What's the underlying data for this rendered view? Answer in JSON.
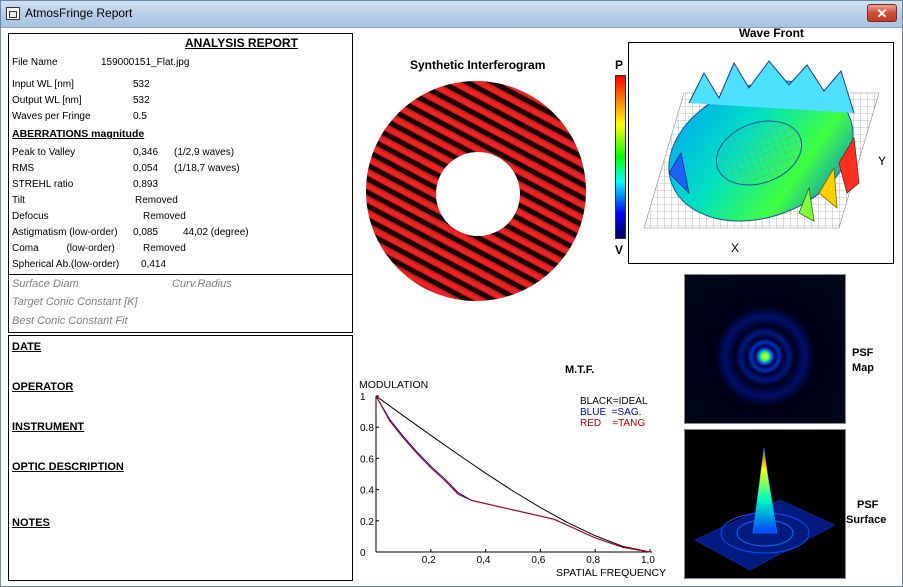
{
  "window": {
    "title": "AtmosFringe  Report",
    "close_label": "✕"
  },
  "report": {
    "title": "ANALYSIS  REPORT",
    "fields": [
      {
        "label": "File Name",
        "value": "159000151_Flat.jpg"
      },
      {
        "label": "Input  WL [nm]",
        "value": "532"
      },
      {
        "label": "Output WL [nm]",
        "value": "532"
      },
      {
        "label": "Waves per Fringe",
        "value": "0.5"
      }
    ],
    "aberrations_header": "ABERRATIONS magnitude",
    "aberrations": [
      {
        "label": "Peak to Valley",
        "value": "0,346",
        "extra": "(1/2,9 waves)"
      },
      {
        "label": "RMS",
        "value": "0,054",
        "extra": "(1/18,7 waves)"
      },
      {
        "label": "STREHL ratio",
        "value": "0,893",
        "extra": ""
      },
      {
        "label": "Tilt",
        "value": "Removed",
        "extra": ""
      },
      {
        "label": "Defocus",
        "value": "Removed",
        "extra": ""
      },
      {
        "label": "Astigmatism  (low-order)",
        "value": "0,085",
        "extra": "44,02  (degree)"
      },
      {
        "label": "Coma          (low-order)",
        "value": "Removed",
        "extra": ""
      },
      {
        "label": "Spherical Ab.(low-order)",
        "value": "0,414",
        "extra": ""
      }
    ],
    "surface_diam": "Surface Diam",
    "curv_radius": "Curv.Radius",
    "target_conic": "Target Conic Constant [K]",
    "best_conic": "Best Conic Constant Fit"
  },
  "notes_panel": {
    "date": "DATE",
    "operator": "OPERATOR",
    "instrument": "INSTRUMENT",
    "optic_description": "OPTIC DESCRIPTION",
    "notes": "NOTES"
  },
  "interferogram": {
    "title": "Synthetic Interferogram"
  },
  "colorbar": {
    "top": "P",
    "bottom": "V"
  },
  "wavefront": {
    "title": "Wave Front",
    "x_label": "X",
    "y_label": "Y"
  },
  "psf": {
    "map_label_1": "PSF",
    "map_label_2": "Map",
    "surface_label_1": "PSF",
    "surface_label_2": "Surface"
  },
  "colors": {
    "fringe": "#d01818",
    "ideal": "#000000",
    "sag": "#0000c0",
    "tang": "#c00000"
  },
  "chart_data": {
    "type": "line",
    "title": "M.T.F.",
    "ylabel": "MODULATION",
    "xlabel": "SPATIAL FREQUENCY",
    "xlim": [
      0,
      1
    ],
    "ylim": [
      0,
      1
    ],
    "xticks": [
      "0,2",
      "0,4",
      "0,6",
      "0,8",
      "1,0"
    ],
    "yticks": [
      "0",
      "0.2",
      "0.4",
      "0.6",
      "0.8",
      "1"
    ],
    "legend": [
      "BLACK=IDEAL",
      "BLUE  =SAG.",
      "RED    =TANG"
    ],
    "series": [
      {
        "name": "IDEAL",
        "x": [
          0,
          0.1,
          0.2,
          0.3,
          0.4,
          0.5,
          0.6,
          0.7,
          0.8,
          0.9,
          1.0
        ],
        "y": [
          1,
          0.873,
          0.748,
          0.625,
          0.505,
          0.391,
          0.285,
          0.188,
          0.104,
          0.036,
          0
        ]
      },
      {
        "name": "SAG.",
        "x": [
          0,
          0.05,
          0.1,
          0.15,
          0.2,
          0.25,
          0.3,
          0.35,
          0.4,
          0.5,
          0.6,
          0.65,
          0.7,
          0.8,
          0.9,
          1.0
        ],
        "y": [
          1,
          0.85,
          0.74,
          0.64,
          0.55,
          0.47,
          0.38,
          0.33,
          0.31,
          0.27,
          0.23,
          0.21,
          0.17,
          0.09,
          0.03,
          0
        ]
      },
      {
        "name": "TANG",
        "x": [
          0,
          0.05,
          0.1,
          0.15,
          0.2,
          0.25,
          0.3,
          0.35,
          0.4,
          0.5,
          0.6,
          0.65,
          0.7,
          0.8,
          0.9,
          1.0
        ],
        "y": [
          1,
          0.84,
          0.73,
          0.63,
          0.54,
          0.46,
          0.37,
          0.33,
          0.31,
          0.27,
          0.23,
          0.21,
          0.17,
          0.09,
          0.03,
          0
        ]
      }
    ]
  }
}
